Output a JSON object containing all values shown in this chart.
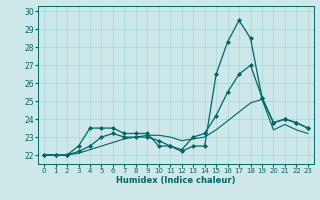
{
  "title": "",
  "xlabel": "Humidex (Indice chaleur)",
  "ylabel": "",
  "bg_color": "#cce8e8",
  "line_color": "#006666",
  "grid_color": "#aad4d4",
  "xlim": [
    -0.5,
    23.5
  ],
  "ylim": [
    21.5,
    30.3
  ],
  "yticks": [
    22,
    23,
    24,
    25,
    26,
    27,
    28,
    29,
    30
  ],
  "xtick_labels": [
    "0",
    "1",
    "2",
    "3",
    "4",
    "5",
    "6",
    "7",
    "8",
    "9",
    "10",
    "11",
    "12",
    "13",
    "14",
    "15",
    "16",
    "17",
    "18",
    "19",
    "20",
    "21",
    "22",
    "23"
  ],
  "series1_x": [
    0,
    1,
    2,
    3,
    4,
    5,
    6,
    7,
    8,
    9,
    10,
    11,
    12,
    13,
    14,
    15,
    16,
    17,
    18,
    19,
    20,
    21,
    22,
    23
  ],
  "series1_y": [
    22,
    22,
    22,
    22.5,
    23.5,
    23.5,
    23.5,
    23.2,
    23.2,
    23.2,
    22.5,
    22.5,
    22.2,
    22.5,
    22.5,
    26.5,
    28.3,
    29.5,
    28.5,
    25.2,
    23.8,
    24.0,
    23.8,
    23.5
  ],
  "series2_x": [
    0,
    1,
    2,
    3,
    4,
    5,
    6,
    7,
    8,
    9,
    10,
    11,
    12,
    13,
    14,
    15,
    16,
    17,
    18,
    19,
    20,
    21,
    22,
    23
  ],
  "series2_y": [
    22,
    22,
    22,
    22.2,
    22.5,
    23.0,
    23.2,
    23.0,
    23.0,
    23.0,
    22.8,
    22.5,
    22.3,
    23.0,
    23.2,
    24.2,
    25.5,
    26.5,
    27.0,
    25.2,
    23.8,
    24.0,
    23.8,
    23.5
  ],
  "series3_x": [
    0,
    1,
    2,
    3,
    4,
    5,
    6,
    7,
    8,
    9,
    10,
    11,
    12,
    13,
    14,
    15,
    16,
    17,
    18,
    19,
    20,
    21,
    22,
    23
  ],
  "series3_y": [
    22,
    22,
    22,
    22.1,
    22.3,
    22.5,
    22.7,
    22.9,
    23.0,
    23.1,
    23.1,
    23.0,
    22.8,
    22.9,
    23.0,
    23.4,
    23.9,
    24.4,
    24.9,
    25.1,
    23.4,
    23.7,
    23.4,
    23.2
  ]
}
